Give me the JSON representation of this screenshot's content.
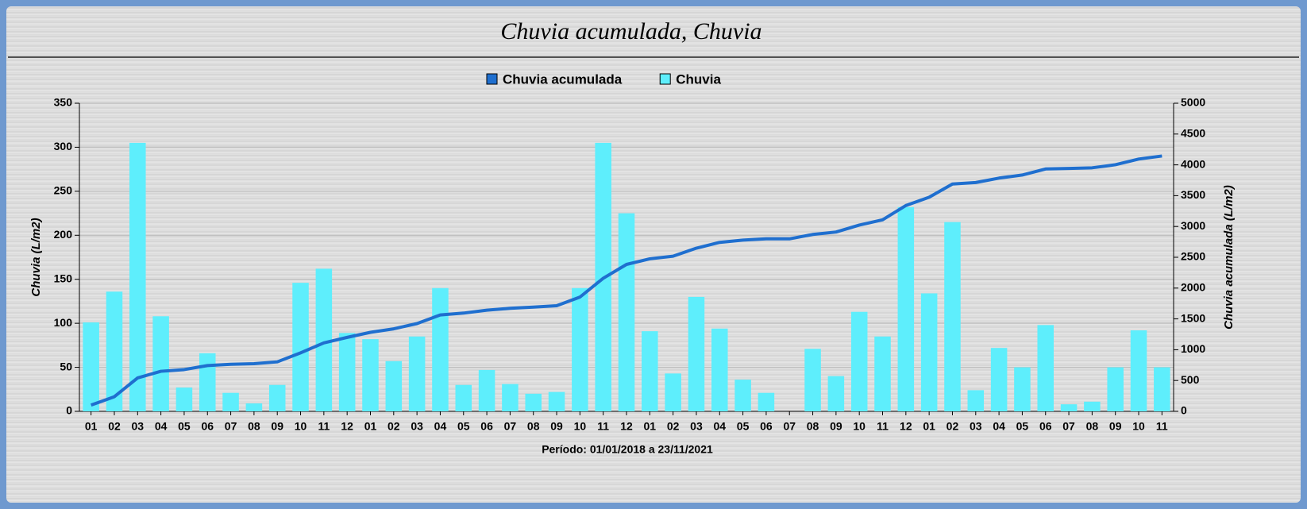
{
  "chart_data": {
    "type": "bar_line",
    "title": "Chuvia acumulada, Chuvia",
    "xlabel": "Período: 01/01/2018 a 23/11/2021",
    "ylabel": "Chuvia (L/m2)",
    "y2label": "Chuvia acumulada (L/m2)",
    "categories": [
      "01",
      "02",
      "03",
      "04",
      "05",
      "06",
      "07",
      "08",
      "09",
      "10",
      "11",
      "12",
      "01",
      "02",
      "03",
      "04",
      "05",
      "06",
      "07",
      "08",
      "09",
      "10",
      "11",
      "12",
      "01",
      "02",
      "03",
      "04",
      "05",
      "06",
      "07",
      "08",
      "09",
      "10",
      "11",
      "12",
      "01",
      "02",
      "03",
      "04",
      "05",
      "06",
      "07",
      "08",
      "09",
      "10",
      "11"
    ],
    "series": [
      {
        "name": "Chuvia acumulada",
        "color": "#1f6fcf",
        "kind": "line",
        "axis": "y2",
        "values": [
          101,
          237,
          542,
          650,
          677,
          743,
          764,
          773,
          803,
          949,
          1111,
          1200,
          1282,
          1339,
          1424,
          1564,
          1594,
          1641,
          1672,
          1692,
          1714,
          1854,
          2159,
          2384,
          2475,
          2518,
          2648,
          2742,
          2778,
          2799,
          2799,
          2870,
          2910,
          3023,
          3108,
          3340,
          3474,
          3689,
          3713,
          3785,
          3835,
          3933,
          3941,
          3952,
          4002,
          4094,
          4144
        ]
      },
      {
        "name": "Chuvia",
        "color": "#5eeefc",
        "kind": "bar",
        "values": [
          101,
          136,
          305,
          108,
          27,
          66,
          21,
          9,
          30,
          146,
          162,
          89,
          82,
          57,
          85,
          140,
          30,
          47,
          31,
          20,
          22,
          140,
          305,
          225,
          91,
          43,
          130,
          94,
          36,
          21,
          0,
          71,
          40,
          113,
          85,
          232,
          134,
          215,
          24,
          72,
          50,
          98,
          8,
          11,
          50,
          92,
          50
        ]
      }
    ],
    "ylim": [
      0,
      350
    ],
    "yticks": [
      0,
      50,
      100,
      150,
      200,
      250,
      300,
      350
    ],
    "y2lim": [
      0,
      5000
    ],
    "y2ticks": [
      0,
      500,
      1000,
      1500,
      2000,
      2500,
      3000,
      3500,
      4000,
      4500,
      5000
    ],
    "grid": true,
    "legend": "top"
  }
}
